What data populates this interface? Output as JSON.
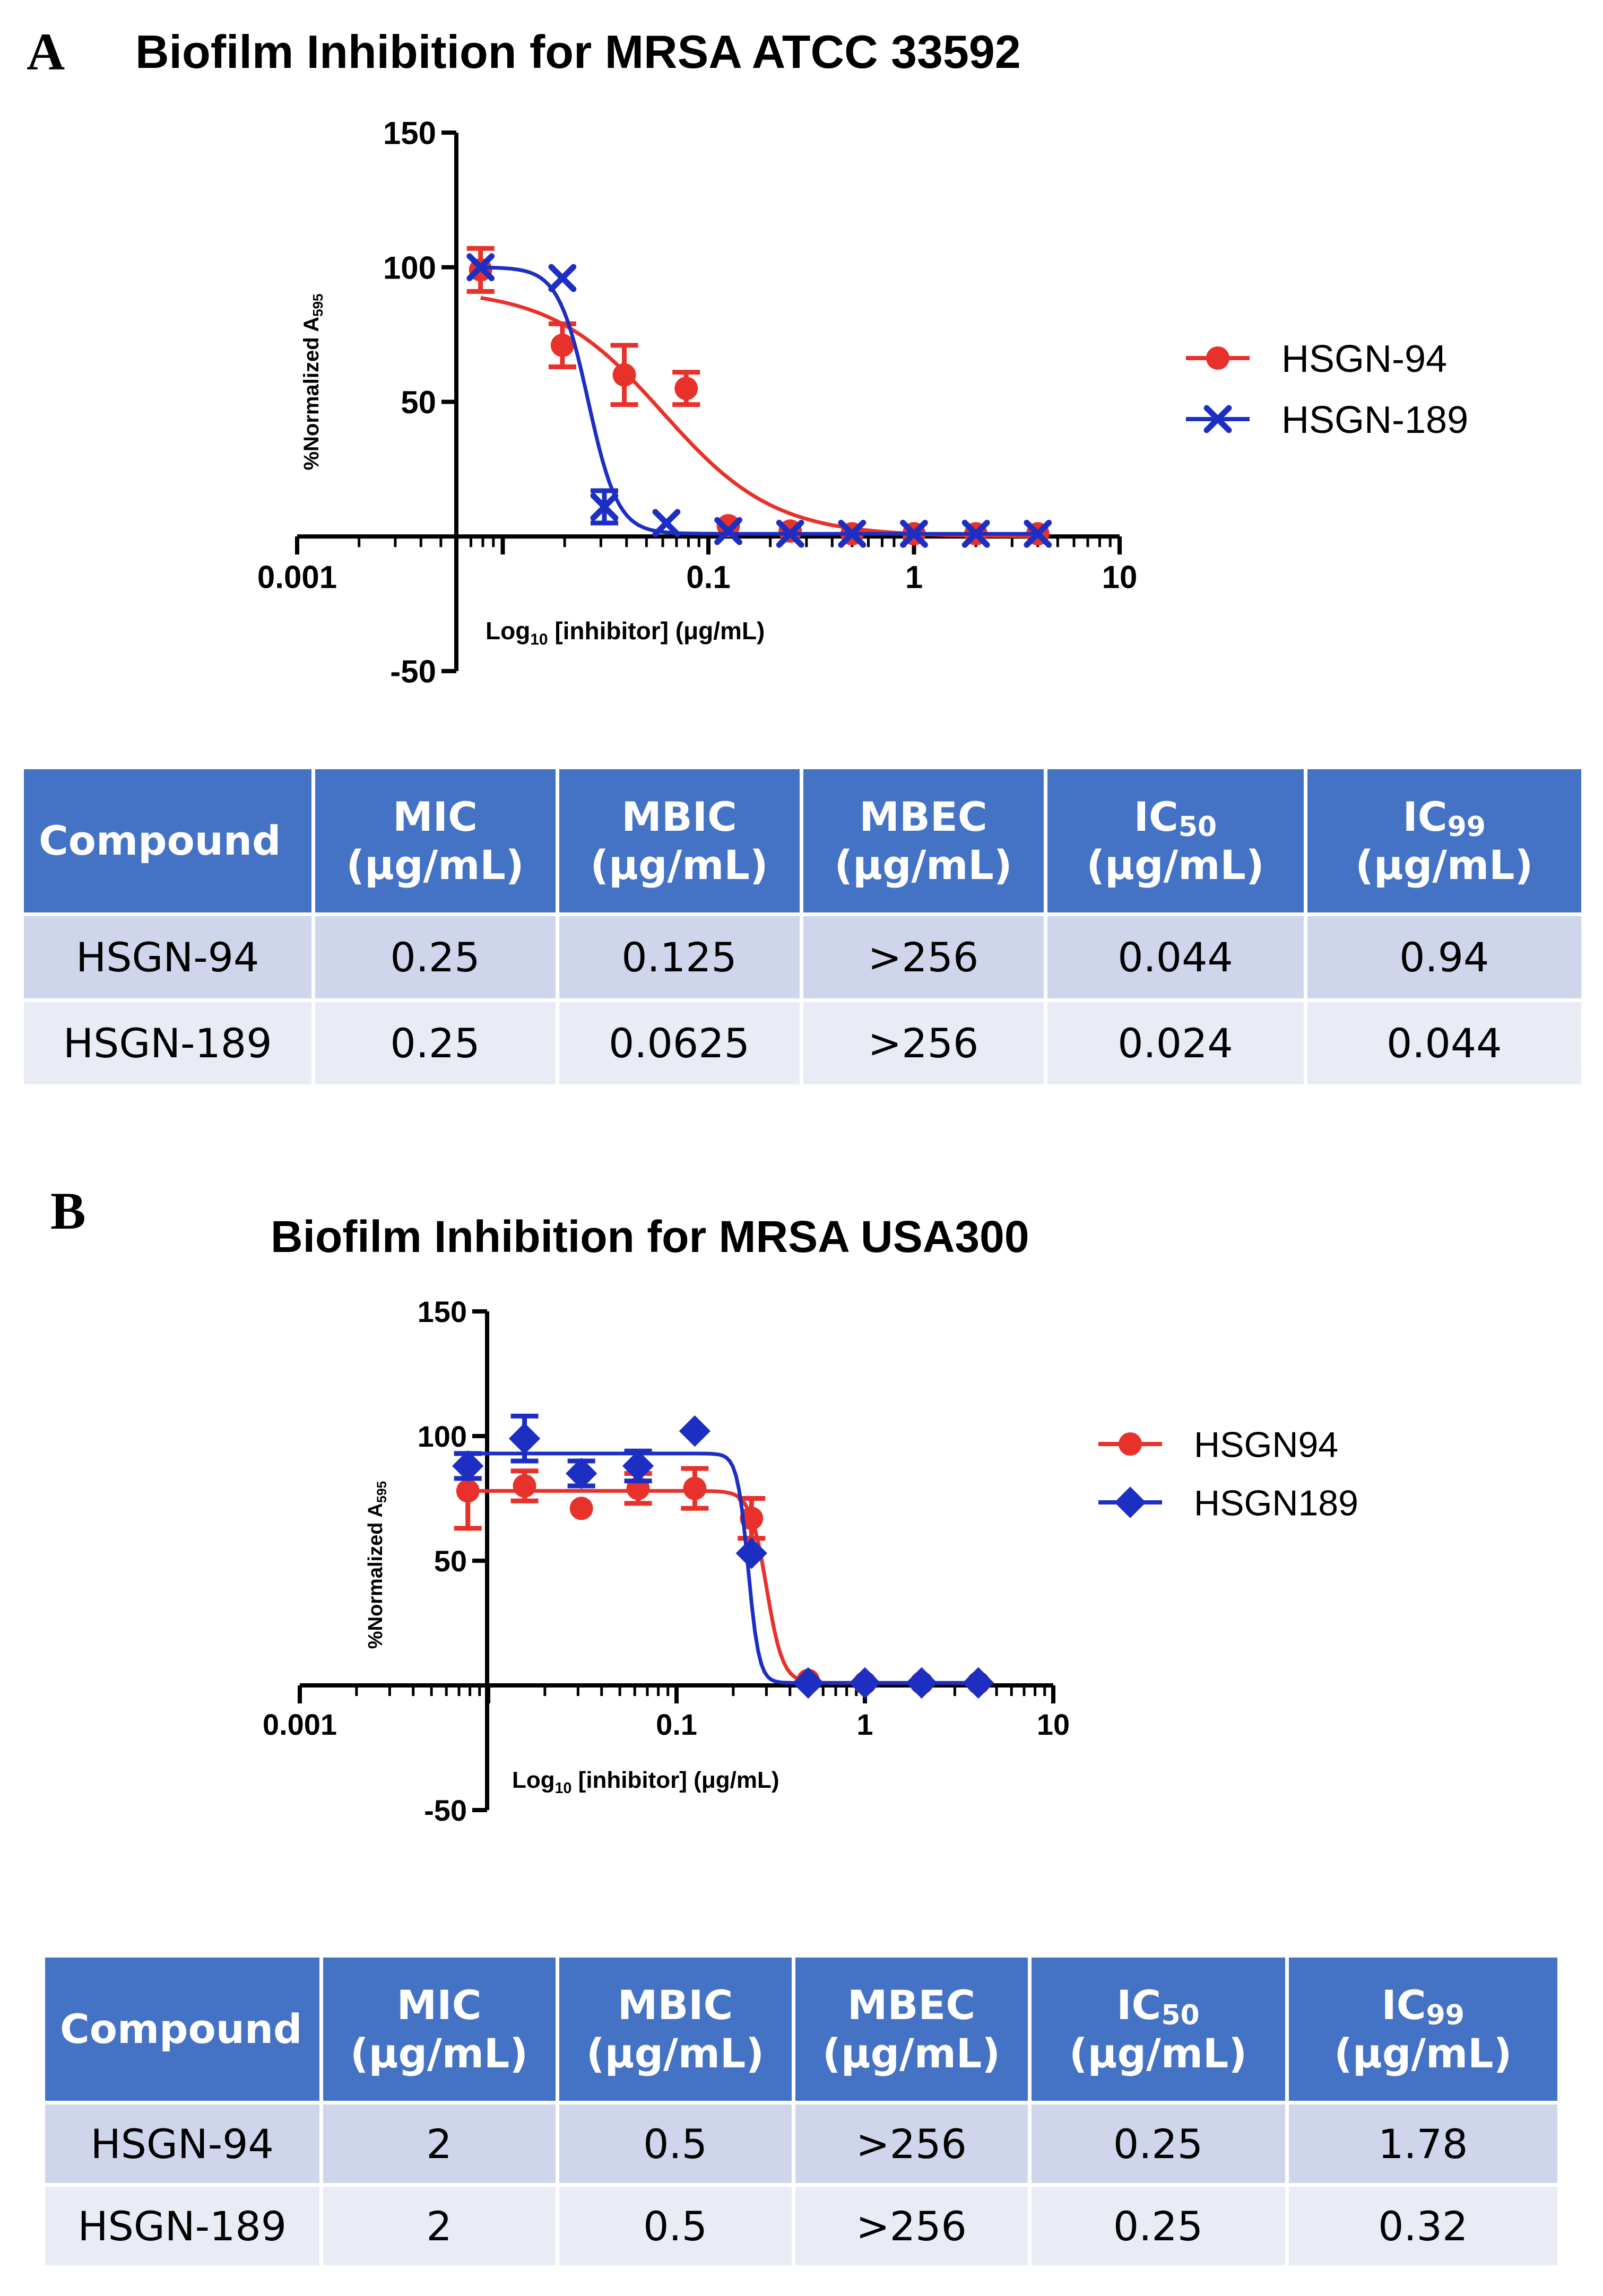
{
  "panels": [
    {
      "letter": "A",
      "chart": {
        "type": "scatter",
        "title": "Biofilm Inhibition for MRSA ATCC 33592",
        "xlabel_main": "Log",
        "xlabel_sub": "10",
        "xlabel_rest": " [inhibitor] (μg/mL)",
        "ylabel_main": "%Normalized A",
        "ylabel_sub": "595",
        "xscale": "log",
        "xlim": [
          0.001,
          10
        ],
        "ylim": [
          -50,
          150
        ],
        "x_tick_labels": [
          "0.001",
          "0.1",
          "1",
          "10"
        ],
        "x_tick_values": [
          0.001,
          0.1,
          1,
          10
        ],
        "y_tick_labels": [
          "150",
          "100",
          "50",
          "-50"
        ],
        "y_tick_values": [
          150,
          100,
          50,
          -50
        ],
        "legend_position": "right",
        "series": [
          {
            "name": "HSGN-94",
            "color": "#e8312a",
            "marker": "circle",
            "x": [
              0.0078,
              0.0195,
              0.039,
              0.078,
              0.125,
              0.25,
              0.5,
              1,
              2,
              4
            ],
            "y": [
              99,
              71,
              60,
              55,
              4,
              2,
              1,
              1,
              1,
              1
            ],
            "err": [
              8,
              8,
              11,
              6,
              0,
              0,
              0,
              0,
              0,
              0
            ],
            "fit": {
              "top": 92,
              "bottom": 0,
              "ec50": 0.06,
              "hill": 1.6
            }
          },
          {
            "name": "HSGN-189",
            "color": "#1c2fc2",
            "marker": "x",
            "x": [
              0.0078,
              0.0195,
              0.0312,
              0.0625,
              0.125,
              0.25,
              0.5,
              1,
              2,
              4
            ],
            "y": [
              100,
              96,
              11,
              5,
              2,
              1,
              1,
              1,
              1,
              1
            ],
            "err": [
              0,
              0,
              6,
              0,
              0,
              0,
              0,
              0,
              0,
              0
            ],
            "fit": {
              "top": 100,
              "bottom": 1,
              "ec50": 0.026,
              "hill": 6
            }
          }
        ]
      },
      "table": {
        "headers": [
          {
            "main": "Compound",
            "sub": "",
            "unit": ""
          },
          {
            "main": "MIC",
            "sub": "",
            "unit": "(µg/mL)"
          },
          {
            "main": "MBIC",
            "sub": "",
            "unit": "(µg/mL)"
          },
          {
            "main": "MBEC",
            "sub": "",
            "unit": "(µg/mL)"
          },
          {
            "main": "IC",
            "sub": "50",
            "unit": "(µg/mL)"
          },
          {
            "main": "IC",
            "sub": "99",
            "unit": "(µg/mL)"
          }
        ],
        "rows": [
          [
            "HSGN-94",
            "0.25",
            "0.125",
            ">256",
            "0.044",
            "0.94"
          ],
          [
            "HSGN-189",
            "0.25",
            "0.0625",
            ">256",
            "0.024",
            "0.044"
          ]
        ]
      }
    },
    {
      "letter": "B",
      "chart": {
        "type": "scatter",
        "title": "Biofilm Inhibition for MRSA USA300",
        "xlabel_main": "Log",
        "xlabel_sub": "10",
        "xlabel_rest": " [inhibitor] (μg/mL)",
        "ylabel_main": "%Normalized A",
        "ylabel_sub": "595",
        "xscale": "log",
        "xlim": [
          0.001,
          10
        ],
        "ylim": [
          -50,
          150
        ],
        "x_tick_labels": [
          "0.001",
          "0.1",
          "1",
          "10"
        ],
        "x_tick_values": [
          0.001,
          0.1,
          1,
          10
        ],
        "y_tick_labels": [
          "150",
          "100",
          "50",
          "-50"
        ],
        "y_tick_values": [
          150,
          100,
          50,
          -50
        ],
        "legend_position": "right",
        "series": [
          {
            "name": "HSGN94",
            "color": "#e8312a",
            "marker": "circle",
            "x": [
              0.0078,
              0.0156,
              0.03125,
              0.0625,
              0.125,
              0.25,
              0.5,
              1,
              2,
              4
            ],
            "y": [
              78,
              80,
              71,
              79,
              79,
              67,
              2,
              1,
              1,
              1
            ],
            "err": [
              15,
              6,
              0,
              6,
              8,
              8,
              0,
              0,
              0,
              0
            ],
            "fit": {
              "top": 78,
              "bottom": 1,
              "ec50": 0.3,
              "hill": 10
            }
          },
          {
            "name": "HSGN189",
            "color": "#1c2fc2",
            "marker": "diamond",
            "x": [
              0.0078,
              0.0156,
              0.03125,
              0.0625,
              0.125,
              0.25,
              0.5,
              1,
              2,
              4
            ],
            "y": [
              88,
              99,
              85,
              88,
              102,
              53,
              1,
              1,
              1,
              1
            ],
            "err": [
              5,
              9,
              5,
              6,
              0,
              0,
              0,
              0,
              0,
              0
            ],
            "fit": {
              "top": 93,
              "bottom": 1,
              "ec50": 0.24,
              "hill": 15
            }
          }
        ]
      },
      "table": {
        "headers": [
          {
            "main": "Compound",
            "sub": "",
            "unit": ""
          },
          {
            "main": "MIC",
            "sub": "",
            "unit": "(µg/mL)"
          },
          {
            "main": "MBIC",
            "sub": "",
            "unit": "(µg/mL)"
          },
          {
            "main": "MBEC",
            "sub": "",
            "unit": "(µg/mL)"
          },
          {
            "main": "IC",
            "sub": "50",
            "unit": "(µg/mL)"
          },
          {
            "main": "IC",
            "sub": "99",
            "unit": "(µg/mL)"
          }
        ],
        "rows": [
          [
            "HSGN-94",
            "2",
            "0.5",
            ">256",
            "0.25",
            "1.78"
          ],
          [
            "HSGN-189",
            "2",
            "0.5",
            ">256",
            "0.25",
            "0.32"
          ]
        ]
      }
    }
  ]
}
